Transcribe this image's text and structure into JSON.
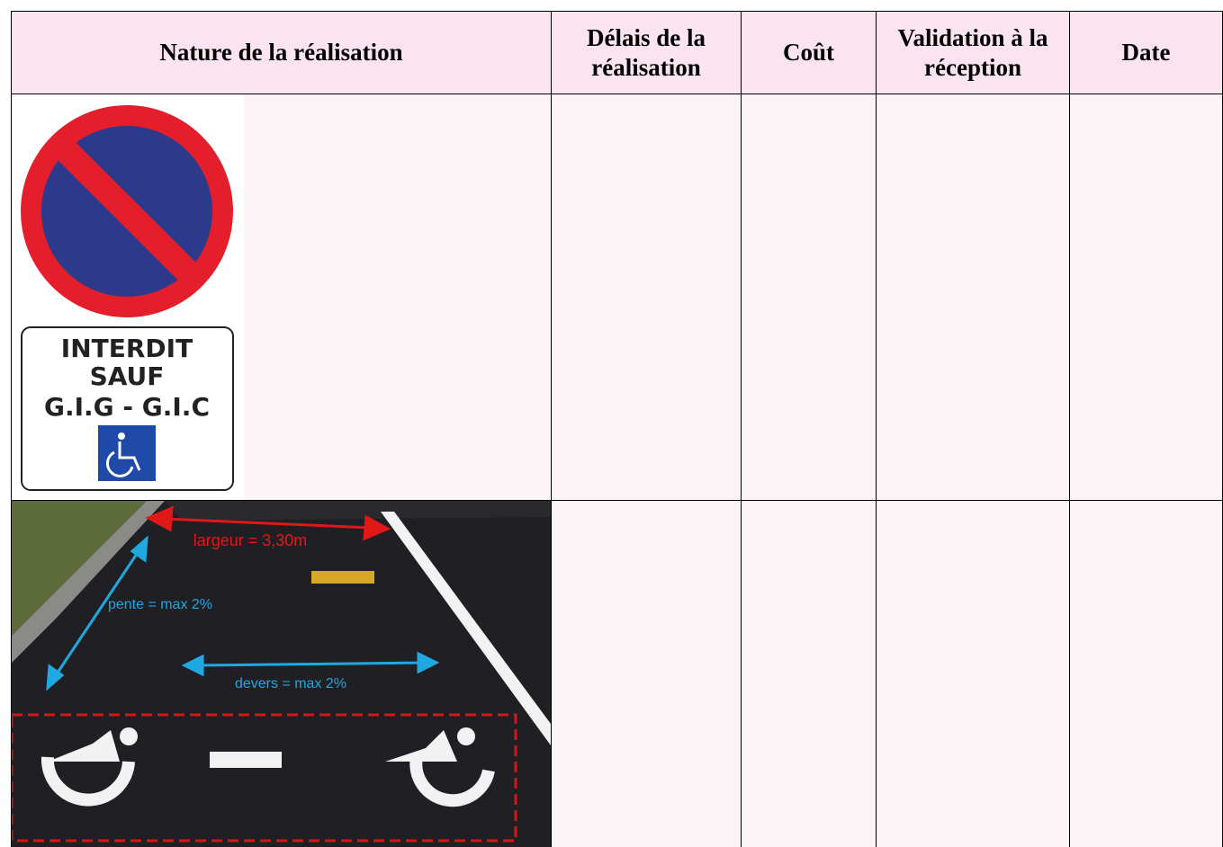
{
  "table": {
    "header": [
      "Nature de la réalisation",
      "Délais de la réalisation",
      "Coût",
      "Validation à la réception",
      "Date"
    ]
  },
  "sign": {
    "lines": [
      "INTERDIT",
      "SAUF",
      "G.I.G - G.I.C"
    ]
  },
  "photo": {
    "width_label": "largeur = 3,30m",
    "slope_label": "pente = max 2%",
    "cross_slope_label": "devers = max 2%"
  }
}
